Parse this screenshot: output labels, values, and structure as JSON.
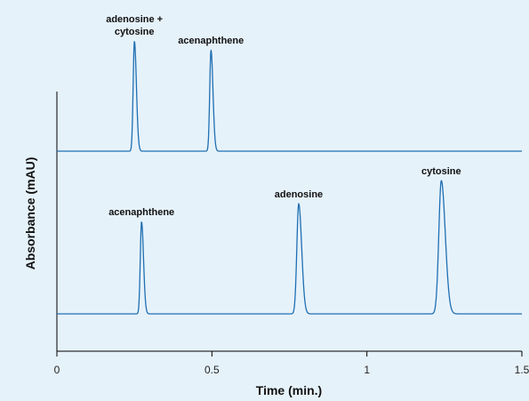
{
  "chart_data": {
    "type": "line",
    "title": "",
    "xlabel": "Time (min.)",
    "ylabel": "Absorbance (mAU)",
    "xlim": [
      0,
      1.5
    ],
    "x_ticks": [
      "0",
      "0.5",
      "1",
      "1.5"
    ],
    "grid": false,
    "line_color": "#1f6fb2",
    "series": [
      {
        "baseline": 0,
        "peaks": [
          {
            "x": 0.25,
            "height": 124,
            "width": 0.004,
            "label_lines": [
              "adenosine +",
              "cytosine"
            ]
          },
          {
            "x": 0.497,
            "height": 114,
            "width": 0.004,
            "label_lines": [
              "acenaphthene"
            ]
          }
        ]
      },
      {
        "baseline": 0,
        "peaks": [
          {
            "x": 0.273,
            "height": 104,
            "width": 0.004,
            "label_lines": [
              "acenaphthene"
            ]
          },
          {
            "x": 0.78,
            "height": 124,
            "width": 0.006,
            "label_lines": [
              "adenosine"
            ]
          },
          {
            "x": 1.24,
            "height": 150,
            "width": 0.008,
            "label_lines": [
              "cytosine"
            ]
          }
        ]
      }
    ]
  }
}
